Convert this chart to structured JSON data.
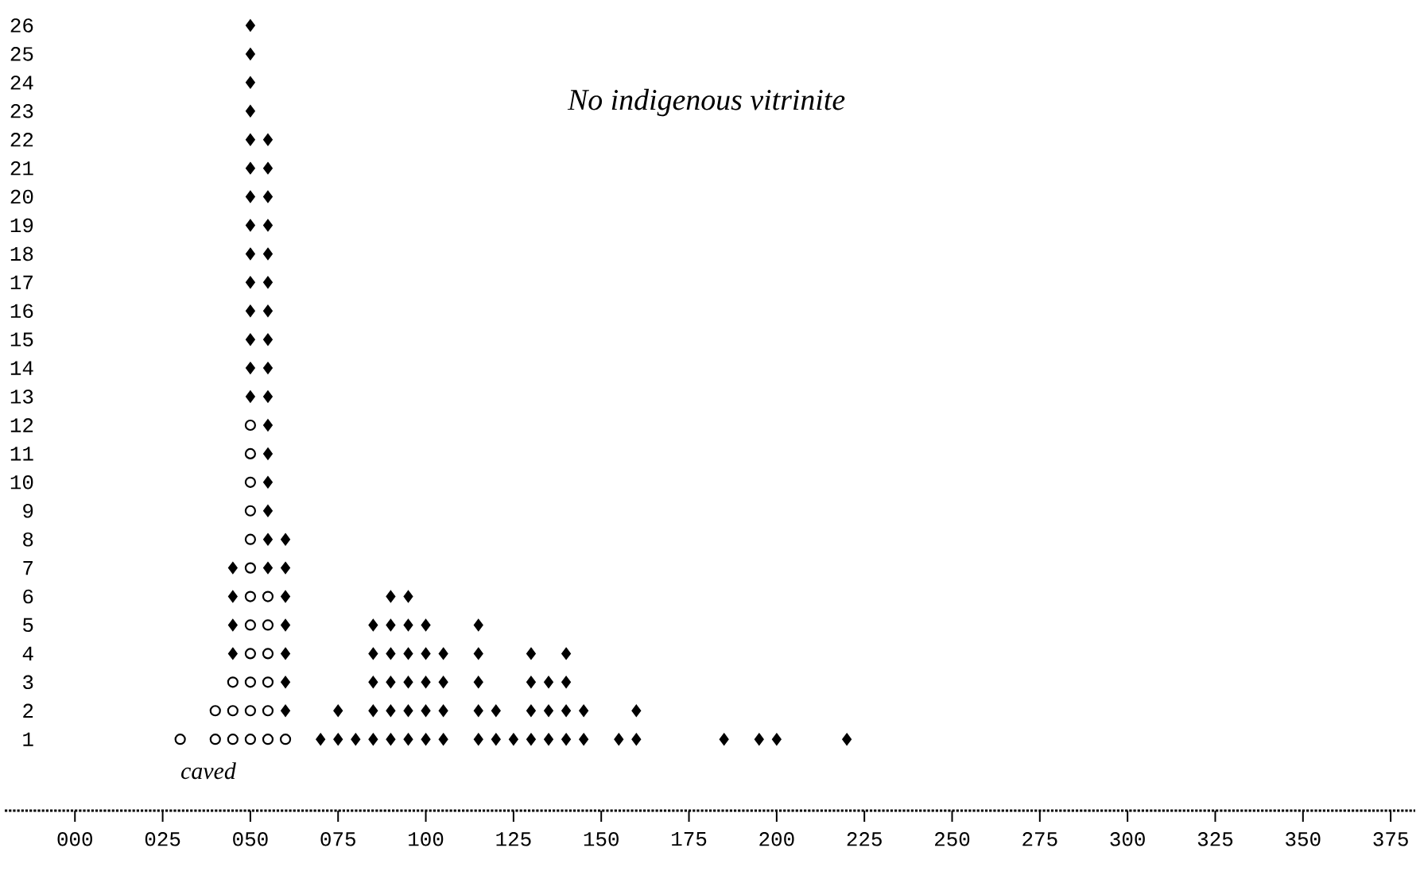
{
  "chart_data": {
    "type": "scatter",
    "annotations": [
      "No indigenous vitrinite",
      "caved"
    ],
    "xlim": [
      -20,
      382
    ],
    "ylim": [
      -1.5,
      26
    ],
    "xticks": [
      {
        "value": 0,
        "label": "000"
      },
      {
        "value": 25,
        "label": "025"
      },
      {
        "value": 50,
        "label": "050"
      },
      {
        "value": 75,
        "label": "075"
      },
      100,
      125,
      150,
      175,
      200,
      225,
      250,
      275,
      300,
      325,
      350,
      375
    ],
    "yticks": [
      1,
      2,
      3,
      4,
      5,
      6,
      7,
      8,
      9,
      10,
      11,
      12,
      13,
      14,
      15,
      16,
      17,
      18,
      19,
      20,
      21,
      22,
      23,
      24,
      25,
      26
    ],
    "series": [
      {
        "color": "#000000",
        "marker": "circle",
        "x": [
          30,
          40,
          40,
          45,
          45,
          45,
          50,
          50,
          50,
          50,
          50,
          50,
          50,
          50,
          50,
          50,
          50,
          50,
          55,
          55,
          55,
          55,
          55,
          55,
          60
        ],
        "values": [
          1,
          1,
          2,
          1,
          2,
          3,
          1,
          2,
          3,
          4,
          5,
          6,
          7,
          8,
          9,
          10,
          11,
          12,
          1,
          2,
          3,
          4,
          5,
          6,
          1
        ]
      },
      {
        "color": "#000000",
        "marker": "diamond",
        "x": [
          45,
          45,
          45,
          45,
          50,
          50,
          50,
          50,
          50,
          50,
          50,
          50,
          50,
          50,
          50,
          50,
          50,
          50,
          55,
          55,
          55,
          55,
          55,
          55,
          55,
          55,
          55,
          55,
          55,
          55,
          55,
          55,
          55,
          55,
          60,
          60,
          60,
          60,
          60,
          60,
          60,
          70,
          75,
          75,
          80,
          85,
          85,
          85,
          85,
          85,
          90,
          90,
          90,
          90,
          90,
          90,
          95,
          95,
          95,
          95,
          95,
          95,
          100,
          100,
          100,
          100,
          100,
          105,
          105,
          105,
          105,
          115,
          115,
          115,
          115,
          115,
          120,
          120,
          125,
          130,
          130,
          130,
          130,
          135,
          135,
          135,
          140,
          140,
          140,
          140,
          145,
          145,
          155,
          160,
          160,
          185,
          195,
          200,
          220
        ],
        "values": [
          4,
          5,
          6,
          7,
          13,
          14,
          15,
          16,
          17,
          18,
          19,
          20,
          21,
          22,
          23,
          24,
          25,
          26,
          7,
          8,
          9,
          10,
          11,
          12,
          13,
          14,
          15,
          16,
          17,
          18,
          19,
          20,
          21,
          22,
          2,
          3,
          4,
          5,
          6,
          7,
          8,
          1,
          1,
          2,
          1,
          1,
          2,
          3,
          4,
          5,
          1,
          2,
          3,
          4,
          5,
          6,
          1,
          2,
          3,
          4,
          5,
          6,
          1,
          2,
          3,
          4,
          5,
          1,
          2,
          3,
          4,
          1,
          2,
          3,
          4,
          5,
          1,
          2,
          1,
          1,
          2,
          3,
          4,
          1,
          2,
          3,
          1,
          2,
          3,
          4,
          1,
          2,
          1,
          1,
          2,
          1,
          1,
          1,
          1
        ]
      }
    ]
  }
}
